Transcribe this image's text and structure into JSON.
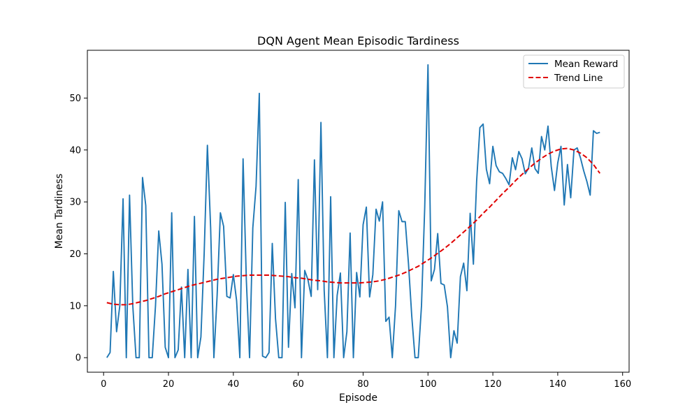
{
  "chart_data": {
    "type": "line",
    "title": "DQN Agent Mean Episodic Tardiness",
    "xlabel": "Episode",
    "ylabel": "Mean Tardiness",
    "xlim": [
      -5,
      162
    ],
    "ylim": [
      -2.8,
      59.2
    ],
    "xticks": [
      0,
      20,
      40,
      60,
      80,
      100,
      120,
      140,
      160
    ],
    "yticks": [
      0,
      10,
      20,
      30,
      40,
      50
    ],
    "grid": false,
    "legend_position": "top-right",
    "series": [
      {
        "name": "Mean Reward",
        "color": "#1f77b4",
        "style": "solid",
        "x": [
          1,
          2,
          3,
          4,
          5,
          6,
          7,
          8,
          9,
          10,
          11,
          12,
          13,
          14,
          15,
          16,
          17,
          18,
          19,
          20,
          21,
          22,
          23,
          24,
          25,
          26,
          27,
          28,
          29,
          30,
          31,
          32,
          33,
          34,
          35,
          36,
          37,
          38,
          39,
          40,
          41,
          42,
          43,
          44,
          45,
          46,
          47,
          48,
          49,
          50,
          51,
          52,
          53,
          54,
          55,
          56,
          57,
          58,
          59,
          60,
          61,
          62,
          63,
          64,
          65,
          66,
          67,
          68,
          69,
          70,
          71,
          72,
          73,
          74,
          75,
          76,
          77,
          78,
          79,
          80,
          81,
          82,
          83,
          84,
          85,
          86,
          87,
          88,
          89,
          90,
          91,
          92,
          93,
          94,
          95,
          96,
          97,
          98,
          99,
          100,
          101,
          102,
          103,
          104,
          105,
          106,
          107,
          108,
          109,
          110,
          111,
          112,
          113,
          114,
          115,
          116,
          117,
          118,
          119,
          120,
          121,
          122,
          123,
          124,
          125,
          126,
          127,
          128,
          129,
          130,
          131,
          132,
          133,
          134,
          135,
          136,
          137,
          138,
          139,
          140,
          141,
          142,
          143,
          144,
          145,
          146,
          147,
          148,
          149,
          150,
          151,
          152,
          153
        ],
        "y": [
          0,
          1,
          16.6,
          5,
          10,
          30.6,
          0,
          31.3,
          10,
          0,
          0,
          34.7,
          29.3,
          0,
          0,
          10,
          24.4,
          18,
          2,
          0,
          27.9,
          0,
          1.5,
          13.6,
          0,
          17,
          0,
          27.2,
          0,
          4,
          20,
          40.9,
          25,
          0,
          12,
          27.9,
          25.3,
          11.8,
          11.5,
          16,
          11,
          0,
          38.3,
          15,
          0,
          25,
          33,
          50.9,
          0.3,
          0,
          1,
          22,
          7.5,
          0,
          0,
          29.9,
          2,
          16.2,
          9.6,
          34.3,
          0,
          16.8,
          15,
          11.8,
          38.1,
          13.1,
          45.3,
          13,
          0,
          31,
          0,
          12,
          16.3,
          0,
          5,
          24,
          0,
          16.4,
          11.7,
          25.6,
          29,
          11.7,
          16,
          28.6,
          26.3,
          30,
          7,
          7.8,
          0,
          10,
          28.3,
          26.2,
          26.2,
          18,
          8,
          0,
          0,
          10,
          29,
          56.4,
          14.8,
          17,
          23.9,
          14.3,
          14,
          9.8,
          0,
          5.2,
          2.8,
          15.6,
          18.2,
          12.9,
          27.8,
          18,
          34,
          44.3,
          45,
          36.3,
          33.5,
          40.7,
          37,
          35.8,
          35.5,
          34.5,
          33.3,
          38.5,
          36.2,
          39.7,
          38.3,
          35.4,
          36.5,
          40.4,
          36.4,
          35.5,
          42.6,
          40,
          44.6,
          36.8,
          32.2,
          37.5,
          40.7,
          29.4,
          37.2,
          30.8,
          40,
          40.4,
          38.5,
          36,
          33.9,
          31.3,
          43.7,
          43.2,
          43.4
        ]
      },
      {
        "name": "Trend Line",
        "color": "#e00000",
        "style": "dashed",
        "x": [
          1,
          3,
          5,
          7,
          9,
          11,
          13,
          15,
          17,
          19,
          21,
          23,
          25,
          27,
          29,
          31,
          33,
          35,
          37,
          39,
          41,
          43,
          45,
          47,
          49,
          51,
          53,
          55,
          57,
          59,
          61,
          63,
          65,
          67,
          69,
          71,
          73,
          75,
          77,
          79,
          81,
          83,
          85,
          87,
          89,
          91,
          93,
          95,
          97,
          99,
          101,
          103,
          105,
          107,
          109,
          111,
          113,
          115,
          117,
          119,
          121,
          123,
          125,
          127,
          129,
          131,
          133,
          135,
          137,
          139,
          141,
          143,
          145,
          147,
          149,
          151,
          153
        ],
        "y": [
          10.6,
          10.3,
          10.2,
          10.2,
          10.4,
          10.7,
          11.0,
          11.4,
          11.8,
          12.3,
          12.7,
          13.1,
          13.5,
          13.9,
          14.2,
          14.5,
          14.8,
          15.1,
          15.3,
          15.5,
          15.7,
          15.8,
          15.9,
          15.9,
          15.9,
          15.9,
          15.8,
          15.7,
          15.6,
          15.4,
          15.3,
          15.1,
          14.9,
          14.8,
          14.6,
          14.5,
          14.4,
          14.4,
          14.4,
          14.4,
          14.5,
          14.6,
          14.8,
          15.1,
          15.5,
          15.9,
          16.4,
          17.0,
          17.6,
          18.4,
          19.2,
          20.1,
          21.0,
          22.0,
          23.1,
          24.2,
          25.3,
          26.5,
          27.8,
          29.0,
          30.3,
          31.6,
          32.8,
          34.1,
          35.3,
          36.4,
          37.5,
          38.4,
          39.2,
          39.8,
          40.2,
          40.3,
          40.0,
          39.4,
          38.5,
          37.2,
          35.5
        ]
      }
    ]
  }
}
